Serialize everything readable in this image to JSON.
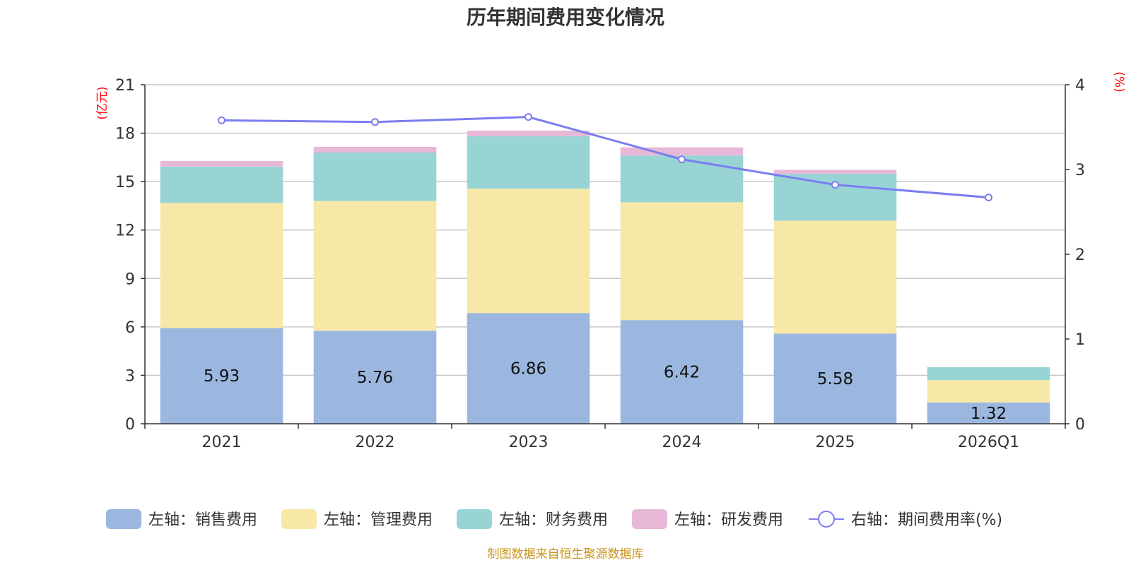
{
  "chart_data": {
    "type": "bar",
    "title": "历年期间费用变化情况",
    "categories": [
      "2021",
      "2022",
      "2023",
      "2024",
      "2025",
      "2026Q1"
    ],
    "left_axis": {
      "unit": "(亿元)",
      "ylim": [
        0,
        21
      ],
      "ticks": [
        0,
        3,
        6,
        9,
        12,
        15,
        18,
        21
      ]
    },
    "right_axis": {
      "unit": "(%)",
      "ylim": [
        0,
        4
      ],
      "ticks": [
        0,
        1,
        2,
        3,
        4
      ]
    },
    "series": [
      {
        "name": "左轴：销售费用",
        "axis": "left",
        "kind": "bar",
        "color": "#9bb7e0",
        "values": [
          5.93,
          5.76,
          6.86,
          6.42,
          5.58,
          1.32
        ],
        "labels": [
          "5.93",
          "5.76",
          "6.86",
          "6.42",
          "5.58",
          "1.32"
        ]
      },
      {
        "name": "左轴：管理费用",
        "axis": "left",
        "kind": "bar",
        "color": "#f7e8a8",
        "values": [
          7.75,
          8.04,
          7.7,
          7.3,
          7.0,
          1.38
        ]
      },
      {
        "name": "左轴：财务费用",
        "axis": "left",
        "kind": "bar",
        "color": "#98d4d4",
        "values": [
          2.25,
          3.0,
          3.25,
          2.9,
          2.9,
          0.8
        ]
      },
      {
        "name": "左轴：研发费用",
        "axis": "left",
        "kind": "bar",
        "color": "#e8b8d8",
        "values": [
          0.35,
          0.35,
          0.35,
          0.5,
          0.25,
          0.0
        ]
      },
      {
        "name": "右轴：期间费用率(%)",
        "axis": "right",
        "kind": "line",
        "color": "#7b7ef0",
        "values": [
          3.58,
          3.56,
          3.62,
          3.12,
          2.82,
          2.67
        ]
      }
    ],
    "grid": true,
    "legend_position": "bottom"
  },
  "source_note": "制图数据来自恒生聚源数据库"
}
